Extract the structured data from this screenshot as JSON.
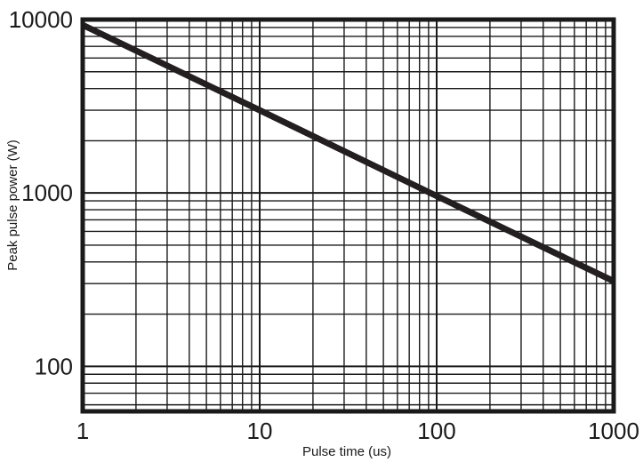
{
  "chart_data": {
    "type": "line",
    "title": "",
    "xlabel": "Pulse time (us)",
    "ylabel": "Peak pulse power (W)",
    "x_scale": "log",
    "y_scale": "log",
    "xlim": [
      1,
      1000
    ],
    "ylim": [
      55,
      10000
    ],
    "grid": true,
    "x_tick_labels": [
      "1",
      "10",
      "100",
      "1000"
    ],
    "y_tick_labels": [
      "100",
      "1000",
      "10000"
    ],
    "series": [
      {
        "x": [
          1,
          10,
          100,
          1000
        ],
        "y": [
          9300,
          3000,
          960,
          310
        ]
      }
    ]
  }
}
